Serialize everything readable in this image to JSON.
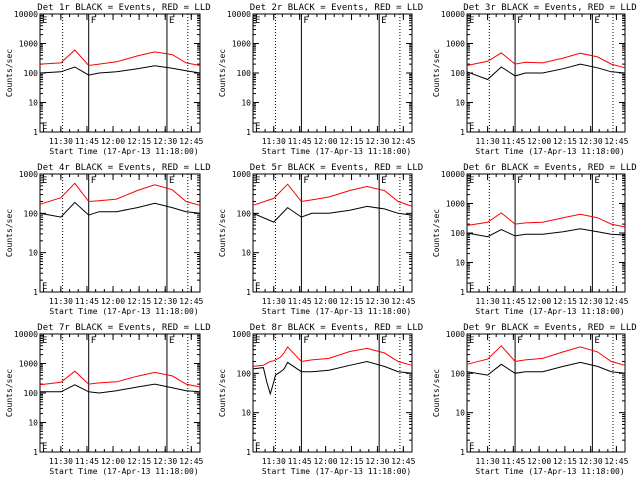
{
  "figure": {
    "subtitle": "Start Time (17-Apr-13 11:18:00)",
    "ylabel": "Counts/sec",
    "x_tick_labels": [
      "11:30",
      "11:45",
      "12:00",
      "12:15",
      "12:30",
      "12:45"
    ],
    "colors": {
      "events": "#000000",
      "lld": "#ff0000",
      "axes": "#000000"
    }
  },
  "chart_data": [
    {
      "type": "line",
      "title": "Det 1r BLACK = Events, RED = LLD",
      "xlabel": "Start Time (17-Apr-13 11:18:00)",
      "ylabel": "Counts/sec",
      "xlim_min": [
        0,
        92
      ],
      "ylim": [
        1,
        10000
      ],
      "yscale": "log",
      "y_tick_labels": [
        "10000",
        "1000",
        "100",
        "10",
        "1"
      ],
      "x_tick_labels": [
        "11:30",
        "11:45",
        "12:00",
        "12:15",
        "12:30",
        "12:45"
      ],
      "x_min": [
        0,
        12,
        20,
        28,
        34,
        44,
        56,
        66,
        76,
        84,
        92
      ],
      "series": [
        {
          "name": "Events",
          "values": [
            100,
            110,
            160,
            85,
            100,
            110,
            140,
            175,
            145,
            120,
            100
          ]
        },
        {
          "name": "LLD",
          "values": [
            200,
            220,
            600,
            180,
            200,
            240,
            380,
            520,
            420,
            220,
            180
          ]
        }
      ],
      "dotted_markers_min": [
        13,
        85
      ],
      "solid_markers_min": [
        28,
        73
      ],
      "marker_labels": [
        {
          "text": "F",
          "min": 28
        },
        {
          "text": "E",
          "min": 73
        }
      ]
    },
    {
      "type": "line",
      "title": "Det 2r BLACK = Events, RED = LLD",
      "xlabel": "Start Time (17-Apr-13 11:18:00)",
      "ylabel": "Counts/sec",
      "xlim_min": [
        0,
        92
      ],
      "ylim": [
        1,
        10000
      ],
      "yscale": "log",
      "y_tick_labels": [
        "10000",
        "1000",
        "100",
        "10",
        "1"
      ],
      "x_tick_labels": [
        "11:30",
        "11:45",
        "12:00",
        "12:15",
        "12:30",
        "12:45"
      ],
      "x_min": [],
      "series": [],
      "dotted_markers_min": [
        13,
        85
      ],
      "solid_markers_min": [
        28,
        73
      ],
      "marker_labels": [
        {
          "text": "F",
          "min": 28
        },
        {
          "text": "E",
          "min": 73
        }
      ]
    },
    {
      "type": "line",
      "title": "Det 3r BLACK = Events, RED = LLD",
      "xlabel": "Start Time (17-Apr-13 11:18:00)",
      "ylabel": "Counts/sec",
      "xlim_min": [
        0,
        92
      ],
      "ylim": [
        1,
        10000
      ],
      "yscale": "log",
      "y_tick_labels": [
        "10000",
        "1000",
        "100",
        "10",
        "1"
      ],
      "x_tick_labels": [
        "11:30",
        "11:45",
        "12:00",
        "12:15",
        "12:30",
        "12:45"
      ],
      "x_min": [
        0,
        12,
        20,
        28,
        34,
        44,
        56,
        66,
        76,
        84,
        92
      ],
      "series": [
        {
          "name": "Events",
          "values": [
            110,
            60,
            160,
            80,
            100,
            100,
            140,
            200,
            150,
            110,
            100
          ]
        },
        {
          "name": "LLD",
          "values": [
            180,
            250,
            480,
            200,
            230,
            220,
            320,
            470,
            350,
            200,
            150
          ]
        }
      ],
      "dotted_markers_min": [
        13,
        85
      ],
      "solid_markers_min": [
        28,
        73
      ],
      "marker_labels": [
        {
          "text": "F",
          "min": 28
        },
        {
          "text": "E",
          "min": 73
        }
      ]
    },
    {
      "type": "line",
      "title": "Det 4r BLACK = Events, RED = LLD",
      "xlabel": "Start Time (17-Apr-13 11:18:00)",
      "ylabel": "Counts/sec",
      "xlim_min": [
        0,
        92
      ],
      "ylim": [
        1,
        1000
      ],
      "yscale": "log",
      "y_tick_labels": [
        "1000",
        "100",
        "10",
        "1"
      ],
      "x_tick_labels": [
        "11:30",
        "11:45",
        "12:00",
        "12:15",
        "12:30",
        "12:45"
      ],
      "x_min": [
        0,
        12,
        20,
        28,
        34,
        44,
        56,
        66,
        76,
        84,
        92
      ],
      "series": [
        {
          "name": "Events",
          "values": [
            100,
            80,
            190,
            90,
            110,
            110,
            140,
            180,
            140,
            110,
            100
          ]
        },
        {
          "name": "LLD",
          "values": [
            170,
            250,
            580,
            200,
            210,
            230,
            380,
            530,
            400,
            200,
            160
          ]
        }
      ],
      "dotted_markers_min": [
        13,
        85
      ],
      "solid_markers_min": [
        28,
        73
      ],
      "marker_labels": [
        {
          "text": "F",
          "min": 28
        },
        {
          "text": "E",
          "min": 73
        }
      ]
    },
    {
      "type": "line",
      "title": "Det 5r BLACK = Events, RED = LLD",
      "xlabel": "Start Time (17-Apr-13 11:18:00)",
      "ylabel": "Counts/sec",
      "xlim_min": [
        0,
        92
      ],
      "ylim": [
        1,
        1000
      ],
      "yscale": "log",
      "y_tick_labels": [
        "1000",
        "100",
        "10",
        "1"
      ],
      "x_tick_labels": [
        "11:30",
        "11:45",
        "12:00",
        "12:15",
        "12:30",
        "12:45"
      ],
      "x_min": [
        0,
        12,
        20,
        28,
        34,
        44,
        56,
        66,
        76,
        84,
        92
      ],
      "series": [
        {
          "name": "Events",
          "values": [
            100,
            60,
            140,
            80,
            100,
            100,
            120,
            150,
            130,
            100,
            90
          ]
        },
        {
          "name": "LLD",
          "values": [
            160,
            240,
            550,
            200,
            220,
            260,
            380,
            480,
            380,
            200,
            150
          ]
        }
      ],
      "dotted_markers_min": [
        13,
        85
      ],
      "solid_markers_min": [
        28,
        73
      ],
      "marker_labels": [
        {
          "text": "F",
          "min": 28
        },
        {
          "text": "E",
          "min": 73
        }
      ]
    },
    {
      "type": "line",
      "title": "Det 6r BLACK = Events, RED = LLD",
      "xlabel": "Start Time (17-Apr-13 11:18:00)",
      "ylabel": "Counts/sec",
      "xlim_min": [
        0,
        92
      ],
      "ylim": [
        1,
        10000
      ],
      "yscale": "log",
      "y_tick_labels": [
        "10000",
        "1000",
        "100",
        "10",
        "1"
      ],
      "x_tick_labels": [
        "11:30",
        "11:45",
        "12:00",
        "12:15",
        "12:30",
        "12:45"
      ],
      "x_min": [
        0,
        12,
        20,
        28,
        34,
        44,
        56,
        66,
        76,
        84,
        92
      ],
      "series": [
        {
          "name": "Events",
          "values": [
            100,
            75,
            130,
            80,
            90,
            90,
            110,
            140,
            110,
            90,
            85
          ]
        },
        {
          "name": "LLD",
          "values": [
            180,
            230,
            480,
            200,
            220,
            230,
            330,
            430,
            330,
            200,
            160
          ]
        }
      ],
      "dotted_markers_min": [
        13,
        85
      ],
      "solid_markers_min": [
        28,
        73
      ],
      "marker_labels": [
        {
          "text": "F",
          "min": 28
        },
        {
          "text": "E",
          "min": 73
        }
      ]
    },
    {
      "type": "line",
      "title": "Det 7r BLACK = Events, RED = LLD",
      "xlabel": "Start Time (17-Apr-13 11:18:00)",
      "ylabel": "Counts/sec",
      "xlim_min": [
        0,
        92
      ],
      "ylim": [
        1,
        10000
      ],
      "yscale": "log",
      "y_tick_labels": [
        "10000",
        "1000",
        "100",
        "10",
        "1"
      ],
      "x_tick_labels": [
        "11:30",
        "11:45",
        "12:00",
        "12:15",
        "12:30",
        "12:45"
      ],
      "x_min": [
        0,
        12,
        20,
        28,
        34,
        44,
        56,
        66,
        76,
        84,
        92
      ],
      "series": [
        {
          "name": "Events",
          "values": [
            110,
            110,
            190,
            110,
            100,
            120,
            160,
            200,
            150,
            120,
            110
          ]
        },
        {
          "name": "LLD",
          "values": [
            190,
            230,
            550,
            200,
            220,
            240,
            370,
            500,
            380,
            200,
            160
          ]
        }
      ],
      "dotted_markers_min": [
        13,
        85
      ],
      "solid_markers_min": [
        28,
        73
      ],
      "marker_labels": [
        {
          "text": "F",
          "min": 28
        },
        {
          "text": "E",
          "min": 73
        }
      ]
    },
    {
      "type": "line",
      "title": "Det 8r BLACK = Events, RED = LLD",
      "xlabel": "Start Time (17-Apr-13 11:18:00)",
      "ylabel": "Counts/sec",
      "xlim_min": [
        0,
        92
      ],
      "ylim": [
        1,
        1000
      ],
      "yscale": "log",
      "y_tick_labels": [
        "1000",
        "100",
        "10",
        "1"
      ],
      "x_tick_labels": [
        "11:30",
        "11:45",
        "12:00",
        "12:15",
        "12:30",
        "12:45"
      ],
      "x_min": [
        0,
        6,
        8,
        10,
        12,
        13,
        16,
        18,
        20,
        28,
        34,
        44,
        56,
        66,
        76,
        84,
        92
      ],
      "series": [
        {
          "name": "Events",
          "values": [
            130,
            140,
            60,
            30,
            60,
            90,
            110,
            130,
            190,
            110,
            110,
            120,
            160,
            200,
            150,
            110,
            100
          ]
        },
        {
          "name": "LLD",
          "values": [
            150,
            160,
            180,
            200,
            210,
            220,
            260,
            330,
            470,
            200,
            220,
            240,
            360,
            430,
            330,
            200,
            160
          ]
        }
      ],
      "dotted_markers_min": [
        13,
        85
      ],
      "solid_markers_min": [
        28,
        73
      ],
      "marker_labels": [
        {
          "text": "F",
          "min": 28
        },
        {
          "text": "E",
          "min": 73
        }
      ]
    },
    {
      "type": "line",
      "title": "Det 9r BLACK = Events, RED = LLD",
      "xlabel": "Start Time (17-Apr-13 11:18:00)",
      "ylabel": "Counts/sec",
      "xlim_min": [
        0,
        92
      ],
      "ylim": [
        1,
        1000
      ],
      "yscale": "log",
      "y_tick_labels": [
        "1000",
        "100",
        "10",
        "1"
      ],
      "x_tick_labels": [
        "11:30",
        "11:45",
        "12:00",
        "12:15",
        "12:30",
        "12:45"
      ],
      "x_min": [
        0,
        12,
        20,
        28,
        34,
        44,
        56,
        66,
        76,
        84,
        92
      ],
      "series": [
        {
          "name": "Events",
          "values": [
            110,
            90,
            170,
            100,
            110,
            110,
            150,
            190,
            150,
            110,
            100
          ]
        },
        {
          "name": "LLD",
          "values": [
            170,
            230,
            500,
            200,
            220,
            240,
            350,
            470,
            350,
            200,
            160
          ]
        }
      ],
      "dotted_markers_min": [
        13,
        85
      ],
      "solid_markers_min": [
        28,
        73
      ],
      "marker_labels": [
        {
          "text": "F",
          "min": 28
        },
        {
          "text": "E",
          "min": 73
        }
      ]
    }
  ]
}
